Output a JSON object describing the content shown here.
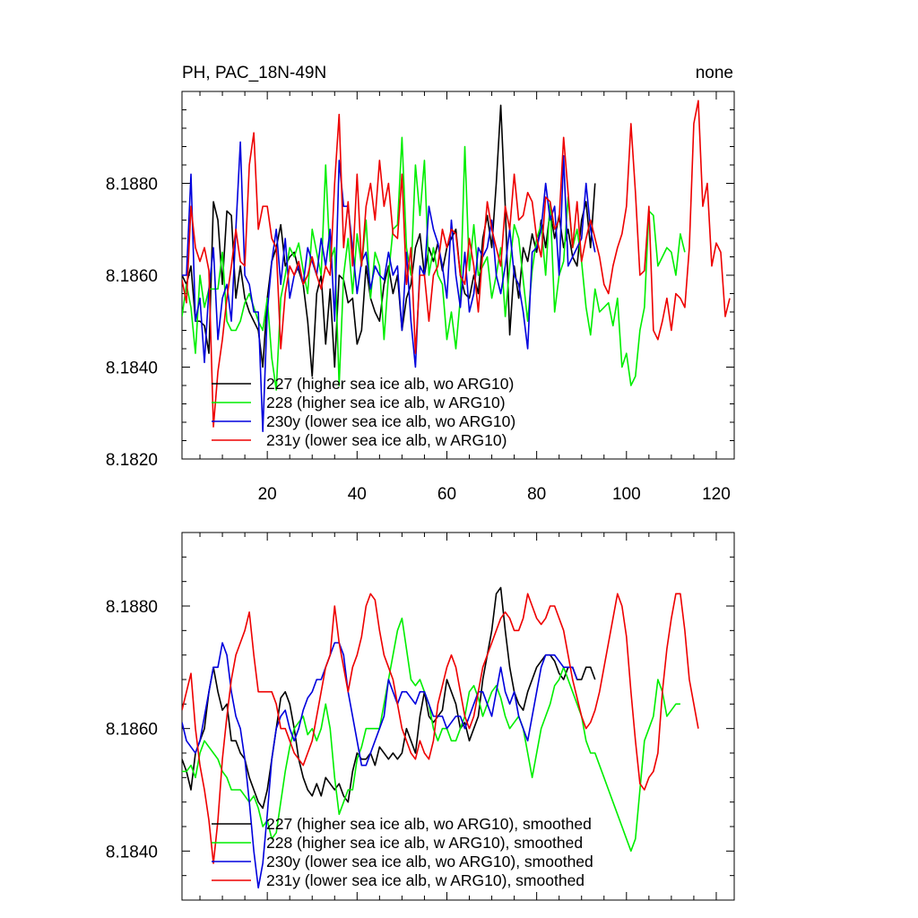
{
  "title_left": "PH, PAC_18N-49N",
  "title_right": "none",
  "chart_data": [
    {
      "type": "line",
      "name": "raw",
      "xlim": [
        1,
        124
      ],
      "ylim": [
        8.182,
        8.19
      ],
      "xticks": [
        20,
        40,
        60,
        80,
        100,
        120
      ],
      "xtick_labels": [
        "20",
        "40",
        "60",
        "80",
        "100",
        "120"
      ],
      "yticks": [
        8.182,
        8.184,
        8.186,
        8.188
      ],
      "ytick_labels": [
        "8.1820",
        "8.1840",
        "8.1860",
        "8.1880"
      ],
      "legend_position": "lower-left",
      "series": [
        {
          "name": "227 (higher sea ice alb, wo ARG10)",
          "color": "#000000",
          "values": [
            8.186,
            8.1858,
            8.1862,
            8.185,
            8.185,
            8.1849,
            8.1843,
            8.1876,
            8.1872,
            8.1858,
            8.1874,
            8.1873,
            8.1855,
            8.1862,
            8.1855,
            8.1852,
            8.185,
            8.1848,
            8.184,
            8.1855,
            8.1863,
            8.1866,
            8.1871,
            8.1862,
            8.1864,
            8.1865,
            8.1861,
            8.1858,
            8.185,
            8.1838,
            8.1856,
            8.186,
            8.1845,
            8.1857,
            8.184,
            8.186,
            8.1859,
            8.1854,
            8.1855,
            8.1845,
            8.1848,
            8.1862,
            8.1855,
            8.1852,
            8.185,
            8.1858,
            8.1862,
            8.1856,
            8.186,
            8.1848,
            8.1855,
            8.1858,
            8.1866,
            8.1869,
            8.186,
            8.1866,
            8.1863,
            8.1867,
            8.1861,
            8.1866,
            8.1868,
            8.187,
            8.186,
            8.1856,
            8.1855,
            8.186,
            8.1856,
            8.1868,
            8.1873,
            8.1866,
            8.188,
            8.1897,
            8.1875,
            8.1847,
            8.1862,
            8.1855,
            8.1866,
            8.1863,
            8.1869,
            8.1865,
            8.1872,
            8.1866,
            8.1874,
            8.1868,
            8.1873,
            8.1866,
            8.187,
            8.1864,
            8.1862,
            8.1872,
            8.1876,
            8.1866,
            8.188
          ]
        },
        {
          "name": "228 (higher sea ice alb, w ARG10)",
          "color": "#00ee00",
          "values": [
            8.1851,
            8.1858,
            8.1853,
            8.1843,
            8.186,
            8.1853,
            8.1857,
            8.1857,
            8.1857,
            8.1865,
            8.185,
            8.1848,
            8.1848,
            8.185,
            8.1854,
            8.1856,
            8.1853,
            8.185,
            8.1848,
            8.1855,
            8.1842,
            8.1835,
            8.1855,
            8.186,
            8.1866,
            8.1864,
            8.1867,
            8.1861,
            8.1856,
            8.187,
            8.1865,
            8.186,
            8.1884,
            8.1863,
            8.1866,
            8.1836,
            8.186,
            8.1868,
            8.1856,
            8.1869,
            8.1862,
            8.1872,
            8.1855,
            8.1865,
            8.1862,
            8.1846,
            8.186,
            8.187,
            8.1871,
            8.189,
            8.1866,
            8.186,
            8.1884,
            8.1873,
            8.1885,
            8.186,
            8.1866,
            8.186,
            8.1858,
            8.1846,
            8.1852,
            8.1844,
            8.1855,
            8.1888,
            8.1861,
            8.1871,
            8.186,
            8.1862,
            8.1864,
            8.1855,
            8.186,
            8.1866,
            8.1851,
            8.1862,
            8.1871,
            8.1868,
            8.1859,
            8.185,
            8.1861,
            8.1868,
            8.1871,
            8.186,
            8.1876,
            8.1852,
            8.186,
            8.1863,
            8.1877,
            8.1866,
            8.187,
            8.1863,
            8.1853,
            8.1847,
            8.1857,
            8.1852,
            8.1853,
            8.1854,
            8.1849,
            8.1855,
            8.184,
            8.1843,
            8.1836,
            8.1838,
            8.1848,
            8.1853,
            8.1874,
            8.1873,
            8.1862,
            8.1864,
            8.1866,
            8.1865,
            8.186,
            8.1869,
            8.1865
          ]
        },
        {
          "name": "230y (lower sea ice alb, wo ARG10)",
          "color": "#0000dd",
          "values": [
            8.186,
            8.186,
            8.1882,
            8.185,
            8.1855,
            8.1841,
            8.1857,
            8.1866,
            8.1846,
            8.1855,
            8.1858,
            8.185,
            8.187,
            8.1889,
            8.186,
            8.1858,
            8.1852,
            8.1852,
            8.1826,
            8.1852,
            8.1863,
            8.187,
            8.1858,
            8.1868,
            8.1855,
            8.186,
            8.1862,
            8.1858,
            8.1866,
            8.1863,
            8.186,
            8.1868,
            8.1862,
            8.187,
            8.185,
            8.1885,
            8.1875,
            8.1875,
            8.1866,
            8.1856,
            8.1863,
            8.1865,
            8.1857,
            8.1862,
            8.186,
            8.1859,
            8.1865,
            8.186,
            8.1862,
            8.1848,
            8.1865,
            8.185,
            8.184,
            8.1862,
            8.186,
            8.1875,
            8.187,
            8.1867,
            8.1862,
            8.1855,
            8.1872,
            8.186,
            8.1853,
            8.1865,
            8.1852,
            8.1856,
            8.1866,
            8.1864,
            8.1866,
            8.1872,
            8.186,
            8.1856,
            8.1862,
            8.187,
            8.186,
            8.1858,
            8.1852,
            8.1844,
            8.1865,
            8.1866,
            8.187,
            8.188,
            8.1872,
            8.1875,
            8.186,
            8.1886,
            8.1862,
            8.1864,
            8.1866,
            8.1868,
            8.188,
            8.187,
            8.1865
          ]
        },
        {
          "name": "231y (lower sea ice alb, w ARG10)",
          "color": "#ee0000",
          "values": [
            8.1859,
            8.1854,
            8.1875,
            8.1866,
            8.1863,
            8.1866,
            8.1861,
            8.1827,
            8.1839,
            8.1846,
            8.1855,
            8.1862,
            8.187,
            8.1863,
            8.1862,
            8.1884,
            8.1891,
            8.187,
            8.1875,
            8.1875,
            8.1868,
            8.1866,
            8.1844,
            8.1856,
            8.1862,
            8.186,
            8.1863,
            8.1858,
            8.186,
            8.1864,
            8.186,
            8.1857,
            8.1862,
            8.186,
            8.188,
            8.1895,
            8.1866,
            8.1876,
            8.1862,
            8.1882,
            8.1862,
            8.1875,
            8.188,
            8.1872,
            8.1885,
            8.1875,
            8.188,
            8.1869,
            8.1868,
            8.1882,
            8.1858,
            8.1866,
            8.1843,
            8.186,
            8.186,
            8.185,
            8.186,
            8.1862,
            8.187,
            8.1866,
            8.187,
            8.1869,
            8.186,
            8.1858,
            8.1868,
            8.1862,
            8.1852,
            8.1865,
            8.1876,
            8.187,
            8.1866,
            8.1862,
            8.1875,
            8.187,
            8.1882,
            8.1872,
            8.1873,
            8.1878,
            8.1876,
            8.1868,
            8.1864,
            8.1877,
            8.1876,
            8.187,
            8.1872,
            8.189,
            8.1878,
            8.1866,
            8.1876,
            8.1863,
            8.1868,
            8.1872,
            8.1868,
            8.1864,
            8.1858,
            8.1856,
            8.1862,
            8.1866,
            8.1869,
            8.1875,
            8.1893,
            8.1878,
            8.186,
            8.1861,
            8.1875,
            8.1848,
            8.1846,
            8.185,
            8.1855,
            8.1848,
            8.1856,
            8.1855,
            8.1853,
            8.1866,
            8.1893,
            8.1898,
            8.1875,
            8.188,
            8.1862,
            8.1867,
            8.1865,
            8.1851,
            8.1855
          ]
        }
      ]
    },
    {
      "type": "line",
      "name": "smoothed",
      "xlim": [
        1,
        124
      ],
      "ylim": [
        8.1832,
        8.1892
      ],
      "xticks": [
        20,
        40,
        60,
        80,
        100,
        120
      ],
      "yticks": [
        8.184,
        8.186,
        8.188
      ],
      "ytick_labels": [
        "8.1840",
        "8.1860",
        "8.1880"
      ],
      "legend_position": "lower-left",
      "series": [
        {
          "name": "227 (higher sea ice alb, wo ARG10), smoothed",
          "color": "#000000",
          "values": [
            8.1855,
            8.1853,
            8.185,
            8.1856,
            8.1858,
            8.186,
            8.1866,
            8.187,
            8.1866,
            8.1863,
            8.1864,
            8.1858,
            8.1858,
            8.1856,
            8.1855,
            8.1852,
            8.185,
            8.1848,
            8.1847,
            8.185,
            8.1855,
            8.186,
            8.1865,
            8.1866,
            8.1864,
            8.186,
            8.1855,
            8.1852,
            8.185,
            8.1849,
            8.1851,
            8.1849,
            8.1852,
            8.1851,
            8.185,
            8.1851,
            8.1849,
            8.1848,
            8.1853,
            8.1856,
            8.1855,
            8.1855,
            8.1856,
            8.1854,
            8.1857,
            8.1856,
            8.1855,
            8.1856,
            8.1855,
            8.1856,
            8.186,
            8.1858,
            8.1856,
            8.1862,
            8.1866,
            8.1862,
            8.1861,
            8.1862,
            8.1863,
            8.1868,
            8.1866,
            8.1864,
            8.186,
            8.1861,
            8.1858,
            8.186,
            8.1862,
            8.1868,
            8.1872,
            8.1876,
            8.1882,
            8.1883,
            8.1876,
            8.187,
            8.1866,
            8.1864,
            8.1863,
            8.1866,
            8.1868,
            8.187,
            8.1871,
            8.1872,
            8.1872,
            8.1871,
            8.1869,
            8.1868,
            8.187,
            8.187,
            8.1868,
            8.1868,
            8.187,
            8.187,
            8.1868
          ]
        },
        {
          "name": "228 (higher sea ice alb, w ARG10), smoothed",
          "color": "#00ee00",
          "values": [
            8.1853,
            8.1853,
            8.1854,
            8.1852,
            8.1856,
            8.1858,
            8.1857,
            8.1856,
            8.1855,
            8.1853,
            8.1852,
            8.185,
            8.185,
            8.185,
            8.1849,
            8.1848,
            8.1849,
            8.1847,
            8.1844,
            8.1845,
            8.1842,
            8.1843,
            8.1848,
            8.1853,
            8.1857,
            8.186,
            8.1861,
            8.1862,
            8.1859,
            8.186,
            8.1858,
            8.186,
            8.1864,
            8.186,
            8.1852,
            8.1846,
            8.1848,
            8.185,
            8.185,
            8.1855,
            8.1857,
            8.186,
            8.186,
            8.186,
            8.186,
            8.1864,
            8.1868,
            8.1872,
            8.1876,
            8.1878,
            8.1873,
            8.1868,
            8.1867,
            8.1868,
            8.1866,
            8.1864,
            8.186,
            8.1858,
            8.186,
            8.186,
            8.1858,
            8.1858,
            8.186,
            8.1862,
            8.1866,
            8.1867,
            8.1865,
            8.1862,
            8.1864,
            8.1866,
            8.1867,
            8.1865,
            8.1862,
            8.186,
            8.1861,
            8.1862,
            8.186,
            8.1856,
            8.1852,
            8.1856,
            8.186,
            8.1862,
            8.1864,
            8.1867,
            8.1868,
            8.187,
            8.1868,
            8.1866,
            8.1864,
            8.1862,
            8.1858,
            8.1856,
            8.1856,
            8.1854,
            8.1852,
            8.185,
            8.1848,
            8.1846,
            8.1844,
            8.1842,
            8.184,
            8.1842,
            8.185,
            8.1858,
            8.186,
            8.1862,
            8.1868,
            8.1866,
            8.1862,
            8.1863,
            8.1864,
            8.1864
          ]
        },
        {
          "name": "230y (lower sea ice alb, wo ARG10), smoothed",
          "color": "#0000dd",
          "values": [
            8.1861,
            8.1858,
            8.1857,
            8.1856,
            8.1858,
            8.1862,
            8.1866,
            8.187,
            8.187,
            8.1874,
            8.1872,
            8.1866,
            8.1862,
            8.186,
            8.1855,
            8.1848,
            8.184,
            8.1834,
            8.1838,
            8.1846,
            8.1855,
            8.186,
            8.1862,
            8.1863,
            8.186,
            8.1858,
            8.186,
            8.1863,
            8.1865,
            8.1866,
            8.1868,
            8.1868,
            8.187,
            8.1872,
            8.1874,
            8.1874,
            8.1872,
            8.1866,
            8.1862,
            8.1858,
            8.1854,
            8.1854,
            8.1856,
            8.1858,
            8.186,
            8.1862,
            8.1868,
            8.1866,
            8.1864,
            8.1866,
            8.1866,
            8.1865,
            8.1864,
            8.1866,
            8.1866,
            8.1864,
            8.1862,
            8.1862,
            8.1862,
            8.186,
            8.1861,
            8.1862,
            8.1862,
            8.186,
            8.1862,
            8.1864,
            8.1866,
            8.1866,
            8.1864,
            8.1862,
            8.1866,
            8.187,
            8.1866,
            8.1864,
            8.1866,
            8.1862,
            8.186,
            8.1858,
            8.1862,
            8.1866,
            8.187,
            8.1872,
            8.1872,
            8.1872,
            8.1871,
            8.187,
            8.187,
            8.187,
            8.1868
          ]
        },
        {
          "name": "231y (lower sea ice alb, w ARG10), smoothed",
          "color": "#ee0000",
          "values": [
            8.1863,
            8.1866,
            8.1869,
            8.186,
            8.1854,
            8.185,
            8.1845,
            8.1838,
            8.1845,
            8.1855,
            8.1862,
            8.1868,
            8.1872,
            8.1874,
            8.1876,
            8.1879,
            8.1872,
            8.1866,
            8.1866,
            8.1866,
            8.1866,
            8.1864,
            8.186,
            8.186,
            8.1858,
            8.1856,
            8.1855,
            8.1854,
            8.1856,
            8.1858,
            8.1862,
            8.1866,
            8.187,
            8.1872,
            8.188,
            8.1874,
            8.187,
            8.1866,
            8.187,
            8.1872,
            8.1875,
            8.188,
            8.1882,
            8.1881,
            8.1876,
            8.1872,
            8.187,
            8.1868,
            8.1864,
            8.186,
            8.1858,
            8.1856,
            8.1855,
            8.1858,
            8.1856,
            8.1855,
            8.1858,
            8.1864,
            8.1867,
            8.187,
            8.1872,
            8.187,
            8.1866,
            8.1862,
            8.186,
            8.1862,
            8.1866,
            8.187,
            8.1872,
            8.1874,
            8.1876,
            8.1878,
            8.1879,
            8.1878,
            8.1876,
            8.1876,
            8.1878,
            8.1882,
            8.188,
            8.1878,
            8.1877,
            8.1878,
            8.188,
            8.188,
            8.1878,
            8.1876,
            8.1872,
            8.1868,
            8.1865,
            8.1862,
            8.186,
            8.1861,
            8.1863,
            8.1866,
            8.187,
            8.1874,
            8.1878,
            8.1882,
            8.188,
            8.1875,
            8.1866,
            8.1858,
            8.1851,
            8.185,
            8.1852,
            8.1853,
            8.1856,
            8.1866,
            8.1873,
            8.1878,
            8.1882,
            8.1882,
            8.1876,
            8.1868,
            8.1864,
            8.186
          ]
        }
      ]
    }
  ]
}
